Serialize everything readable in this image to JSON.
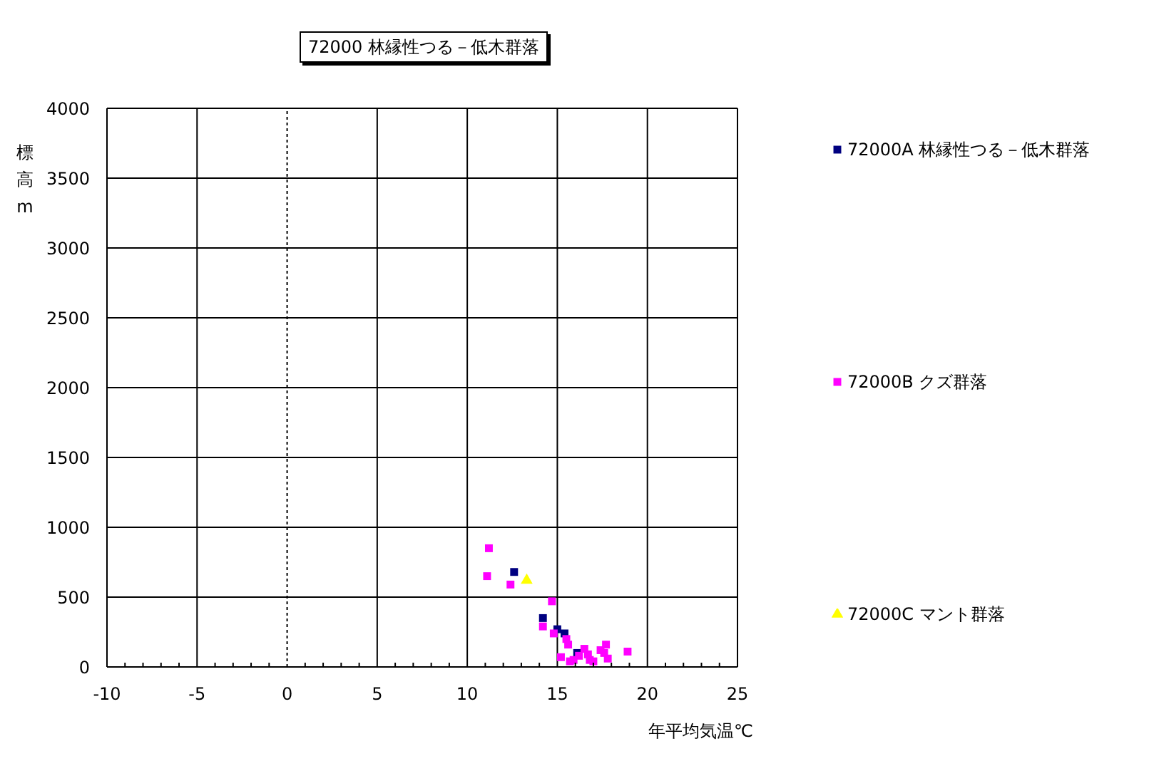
{
  "chart_data": {
    "type": "scatter",
    "title": "72000 林縁性つる－低木群落",
    "xlabel": "年平均気温℃",
    "ylabel": "標高m",
    "xlim": [
      -10,
      25
    ],
    "xticks": [
      -10,
      {
        "value": -9,
        "label": null
      },
      {
        "value": -8,
        "label": null
      },
      {
        "value": -7,
        "label": null
      },
      {
        "value": -6,
        "label": null
      },
      -5,
      {
        "value": -4,
        "label": null
      },
      {
        "value": -3,
        "label": null
      },
      {
        "value": -2,
        "label": null
      },
      {
        "value": -1,
        "label": null
      },
      0,
      {
        "value": 1,
        "label": null
      },
      {
        "value": 2,
        "label": null
      },
      {
        "value": 3,
        "label": null
      },
      {
        "value": 4,
        "label": null
      },
      5,
      {
        "value": 6,
        "label": null
      },
      {
        "value": 7,
        "label": null
      },
      {
        "value": 8,
        "label": null
      },
      {
        "value": 9,
        "label": null
      },
      10,
      {
        "value": 11,
        "label": null
      },
      {
        "value": 12,
        "label": null
      },
      {
        "value": 13,
        "label": null
      },
      {
        "value": 14,
        "label": null
      },
      15,
      {
        "value": 16,
        "label": null
      },
      {
        "value": 17,
        "label": null
      },
      {
        "value": 18,
        "label": null
      },
      {
        "value": 19,
        "label": null
      },
      20,
      {
        "value": 21,
        "label": null
      },
      {
        "value": 22,
        "label": null
      },
      {
        "value": 23,
        "label": null
      },
      {
        "value": 24,
        "label": null
      },
      25
    ],
    "ylim": [
      0,
      4000
    ],
    "yticks": [
      0,
      500,
      1000,
      1500,
      2000,
      2500,
      3000,
      3500,
      4000
    ],
    "grid": true,
    "legend": "right",
    "ref_lines": [
      {
        "axis": "x",
        "value": 0,
        "color": "#000000",
        "line_style": "dotted"
      }
    ],
    "series": [
      {
        "name": "72000A 林縁性つる－低木群落",
        "color": "#000080",
        "marker": "square",
        "x": [
          12.6,
          14.2,
          15.0,
          15.4,
          16.1
        ],
        "values": [
          680,
          350,
          270,
          240,
          100
        ]
      },
      {
        "name": "72000B クズ群落",
        "color": "#ff00ff",
        "marker": "square",
        "x": [
          11.2,
          11.1,
          12.4,
          14.7,
          14.2,
          14.8,
          15.5,
          15.6,
          15.2,
          15.7,
          15.9,
          16.5,
          16.2,
          16.7,
          16.8,
          17.0,
          17.4,
          17.7,
          17.6,
          17.8,
          18.9
        ],
        "values": [
          850,
          650,
          590,
          470,
          290,
          240,
          200,
          160,
          70,
          40,
          50,
          130,
          80,
          90,
          50,
          40,
          120,
          160,
          100,
          60,
          110
        ]
      },
      {
        "name": "72000C マント群落",
        "color": "#ffff00",
        "marker": "triangle",
        "x": [
          13.3
        ],
        "values": [
          620
        ]
      }
    ]
  }
}
